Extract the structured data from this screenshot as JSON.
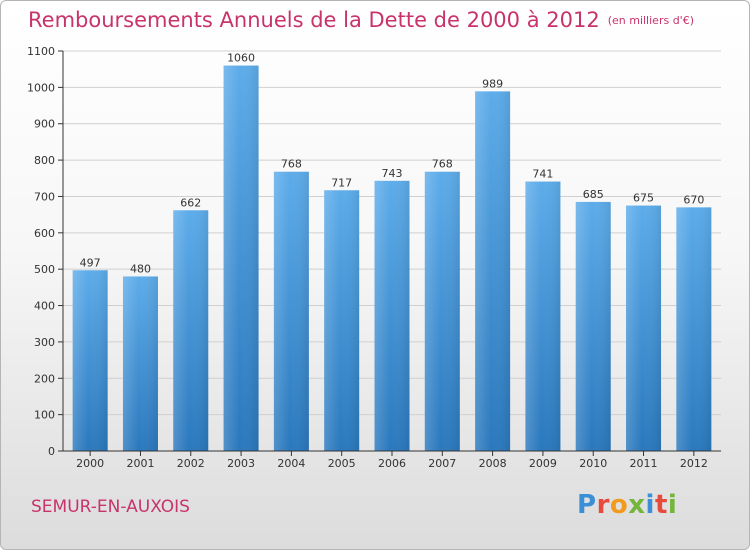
{
  "title": "Remboursements Annuels de la Dette de 2000 à 2012",
  "unit": "(en milliers d'€)",
  "town": "SEMUR-EN-AUXOIS",
  "logo": {
    "letters": [
      "P",
      "r",
      "o",
      "x",
      "i",
      "t",
      "i"
    ],
    "colors": [
      "#3a8fd6",
      "#e8493d",
      "#f29a1d",
      "#72b63a",
      "#3a8fd6",
      "#e8493d",
      "#72b63a"
    ]
  },
  "colors": {
    "title": "#c8336b",
    "bar_top": "#5dacea",
    "bar_bottom": "#2a78bd",
    "grid": "#d0d0d0",
    "axis": "#333333"
  },
  "chart_data": {
    "type": "bar",
    "title": "Remboursements Annuels de la Dette de 2000 à 2012",
    "categories": [
      "2000",
      "2001",
      "2002",
      "2003",
      "2004",
      "2005",
      "2006",
      "2007",
      "2008",
      "2009",
      "2010",
      "2011",
      "2012"
    ],
    "values": [
      497,
      480,
      662,
      1060,
      768,
      717,
      743,
      768,
      989,
      741,
      685,
      675,
      670
    ],
    "ylim": [
      0,
      1100
    ],
    "yticks": [
      0,
      100,
      200,
      300,
      400,
      500,
      600,
      700,
      800,
      900,
      1000,
      1100
    ],
    "grid": true
  }
}
